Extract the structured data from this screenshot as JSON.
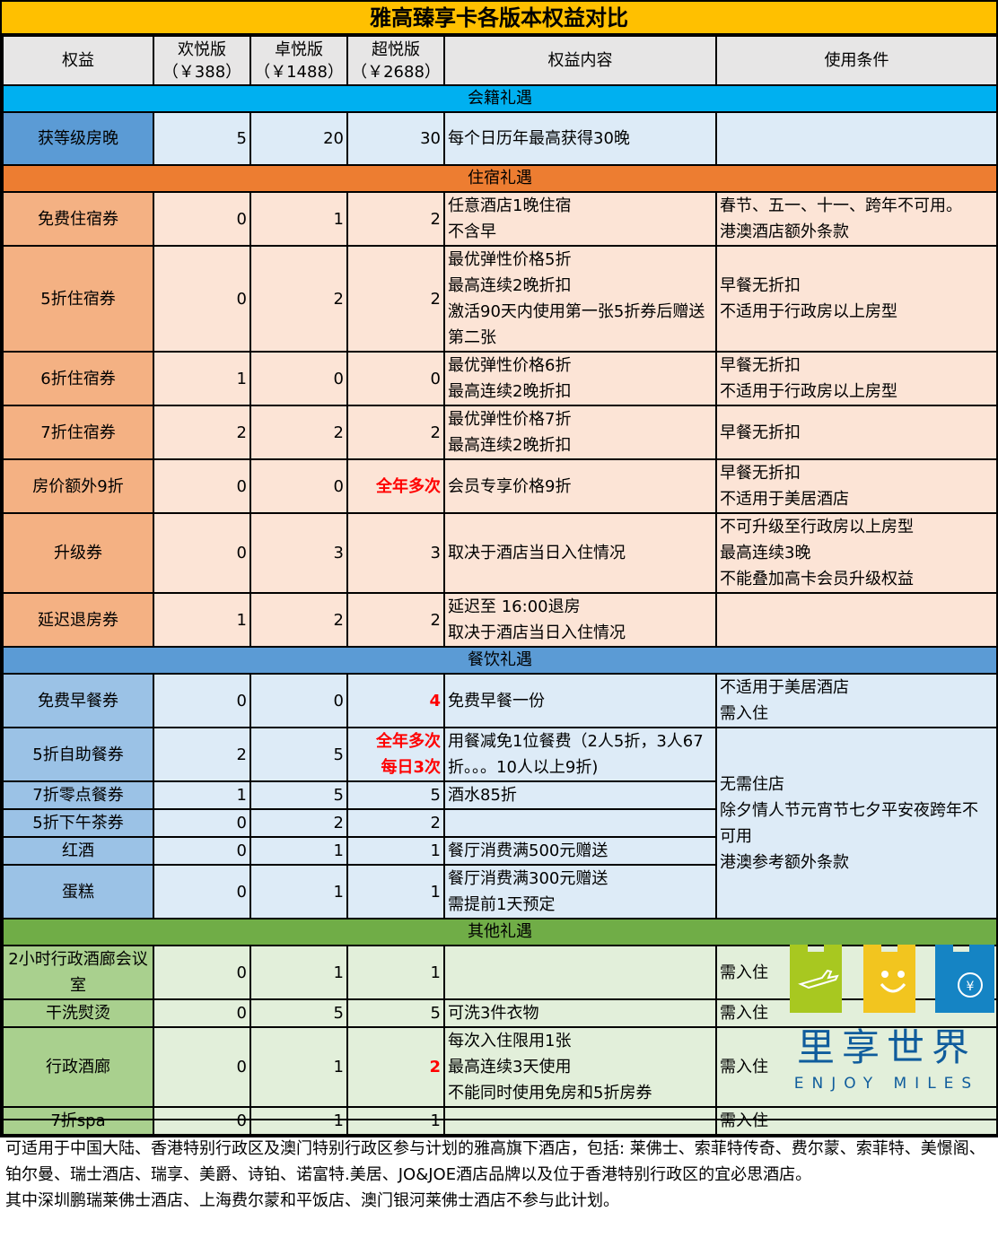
{
  "title": "雅高臻享卡各版本权益对比",
  "headers": [
    "权益",
    "欢悦版\n（￥388）",
    "卓悦版\n（￥1488）",
    "超悦版\n（￥2688）",
    "权益内容",
    "使用条件"
  ],
  "colors": {
    "title": "#FFC000",
    "header": "#E7E6E6",
    "red": "#FF0000"
  },
  "sections": [
    {
      "title": "会籍礼遇",
      "bar": "#00B0F0",
      "label_bg": "#5B9BD5",
      "cell_bg": "#DDEBF7",
      "rows": [
        {
          "label": "获等级房晚",
          "v": [
            "5",
            "20",
            "30"
          ],
          "content": "每个日历年最高获得30晚",
          "cond": ""
        }
      ]
    },
    {
      "title": "住宿礼遇",
      "bar": "#ED7D31",
      "label_bg": "#F4B183",
      "cell_bg": "#FCE4D6",
      "rows": [
        {
          "label": "免费住宿券",
          "v": [
            "0",
            "1",
            "2"
          ],
          "content": "任意酒店1晚住宿\n不含早",
          "cond": "春节、五一、十一、跨年不可用。\n港澳酒店额外条款"
        },
        {
          "label": "5折住宿券",
          "v": [
            "0",
            "2",
            "2"
          ],
          "content": "最优弹性价格5折\n最高连续2晚折扣\n激活90天内使用第一张5折券后赠送第二张",
          "cond": "早餐无折扣\n不适用于行政房以上房型"
        },
        {
          "label": "6折住宿券",
          "v": [
            "1",
            "0",
            "0"
          ],
          "content": "最优弹性价格6折\n最高连续2晚折扣",
          "cond": "早餐无折扣\n不适用于行政房以上房型"
        },
        {
          "label": "7折住宿券",
          "v": [
            "2",
            "2",
            "2"
          ],
          "content": "最优弹性价格7折\n最高连续2晚折扣",
          "cond": "早餐无折扣"
        },
        {
          "label": "房价额外9折",
          "v": [
            "0",
            "0",
            "全年多次"
          ],
          "red": 2,
          "content": "会员专享价格9折",
          "cond": "早餐无折扣\n不适用于美居酒店"
        },
        {
          "label": "升级券",
          "v": [
            "0",
            "3",
            "3"
          ],
          "content": "取决于酒店当日入住情况",
          "cond": "不可升级至行政房以上房型\n最高连续3晚\n不能叠加高卡会员升级权益"
        },
        {
          "label": "延迟退房券",
          "v": [
            "1",
            "2",
            "2"
          ],
          "content": "延迟至 16:00退房\n取决于酒店当日入住情况",
          "cond": ""
        }
      ]
    },
    {
      "title": "餐饮礼遇",
      "bar": "#5B9BD5",
      "label_bg": "#9BC2E6",
      "cell_bg": "#DDEBF7",
      "rows": [
        {
          "label": "免费早餐券",
          "v": [
            "0",
            "0",
            "4"
          ],
          "red": 2,
          "content": "免费早餐一份",
          "cond": "不适用于美居酒店\n需入住"
        },
        {
          "label": "5折自助餐券",
          "v": [
            "2",
            "5",
            "全年多次\n每日3次"
          ],
          "red": 2,
          "content": "用餐减免1位餐费（2人5折，3人67折。。。10人以上9折)",
          "cond": "无需住店\n除夕情人节元宵节七夕平安夜跨年不可用\n港澳参考额外条款"
        },
        {
          "label": "7折零点餐券",
          "v": [
            "1",
            "5",
            "5"
          ],
          "content": "酒水85折"
        },
        {
          "label": "5折下午茶券",
          "v": [
            "0",
            "2",
            "2"
          ],
          "content": ""
        },
        {
          "label": "红酒",
          "v": [
            "0",
            "1",
            "1"
          ],
          "content": "餐厅消费满500元赠送"
        },
        {
          "label": "蛋糕",
          "v": [
            "0",
            "1",
            "1"
          ],
          "content": "餐厅消费满300元赠送\n需提前1天预定"
        }
      ]
    },
    {
      "title": "其他礼遇",
      "bar": "#70AD47",
      "label_bg": "#A9D08E",
      "cell_bg": "#E2EFDA",
      "rows": [
        {
          "label": "2小时行政酒廊会议室",
          "v": [
            "0",
            "1",
            "1"
          ],
          "content": "",
          "cond": "需入住"
        },
        {
          "label": "干洗熨烫",
          "v": [
            "0",
            "5",
            "5"
          ],
          "content": "可洗3件衣物",
          "cond": "需入住"
        },
        {
          "label": "行政酒廊",
          "v": [
            "0",
            "1",
            "2"
          ],
          "red": 2,
          "content": "每次入住限用1张\n最高连续3天使用\n不能同时使用免房和5折房券",
          "cond": "需入住"
        },
        {
          "label": "7折spa",
          "v": [
            "0",
            "1",
            "1"
          ],
          "content": "",
          "cond": "需入住"
        }
      ]
    }
  ],
  "footer": [
    "可适用于中国大陆、香港特别行政区及澳门特别行政区参与计划的雅高旗下酒店，包括: 莱佛士、索菲特传奇、费尔蒙、索菲特、美憬阁、铂尔曼、瑞士酒店、瑞享、美爵、诗铂、诺富特.美居、JO&JOE酒店品牌以及位于香港特别行政区的宜必思酒店。",
    "其中深圳鹏瑞莱佛士酒店、上海费尔蒙和平饭店、澳门银河莱佛士酒店不参与此计划。"
  ],
  "logo": {
    "name": "里享世界",
    "tagline": "ENJOY MILES",
    "colors": [
      "#A8C820",
      "#F2C51F",
      "#1584C4"
    ]
  }
}
